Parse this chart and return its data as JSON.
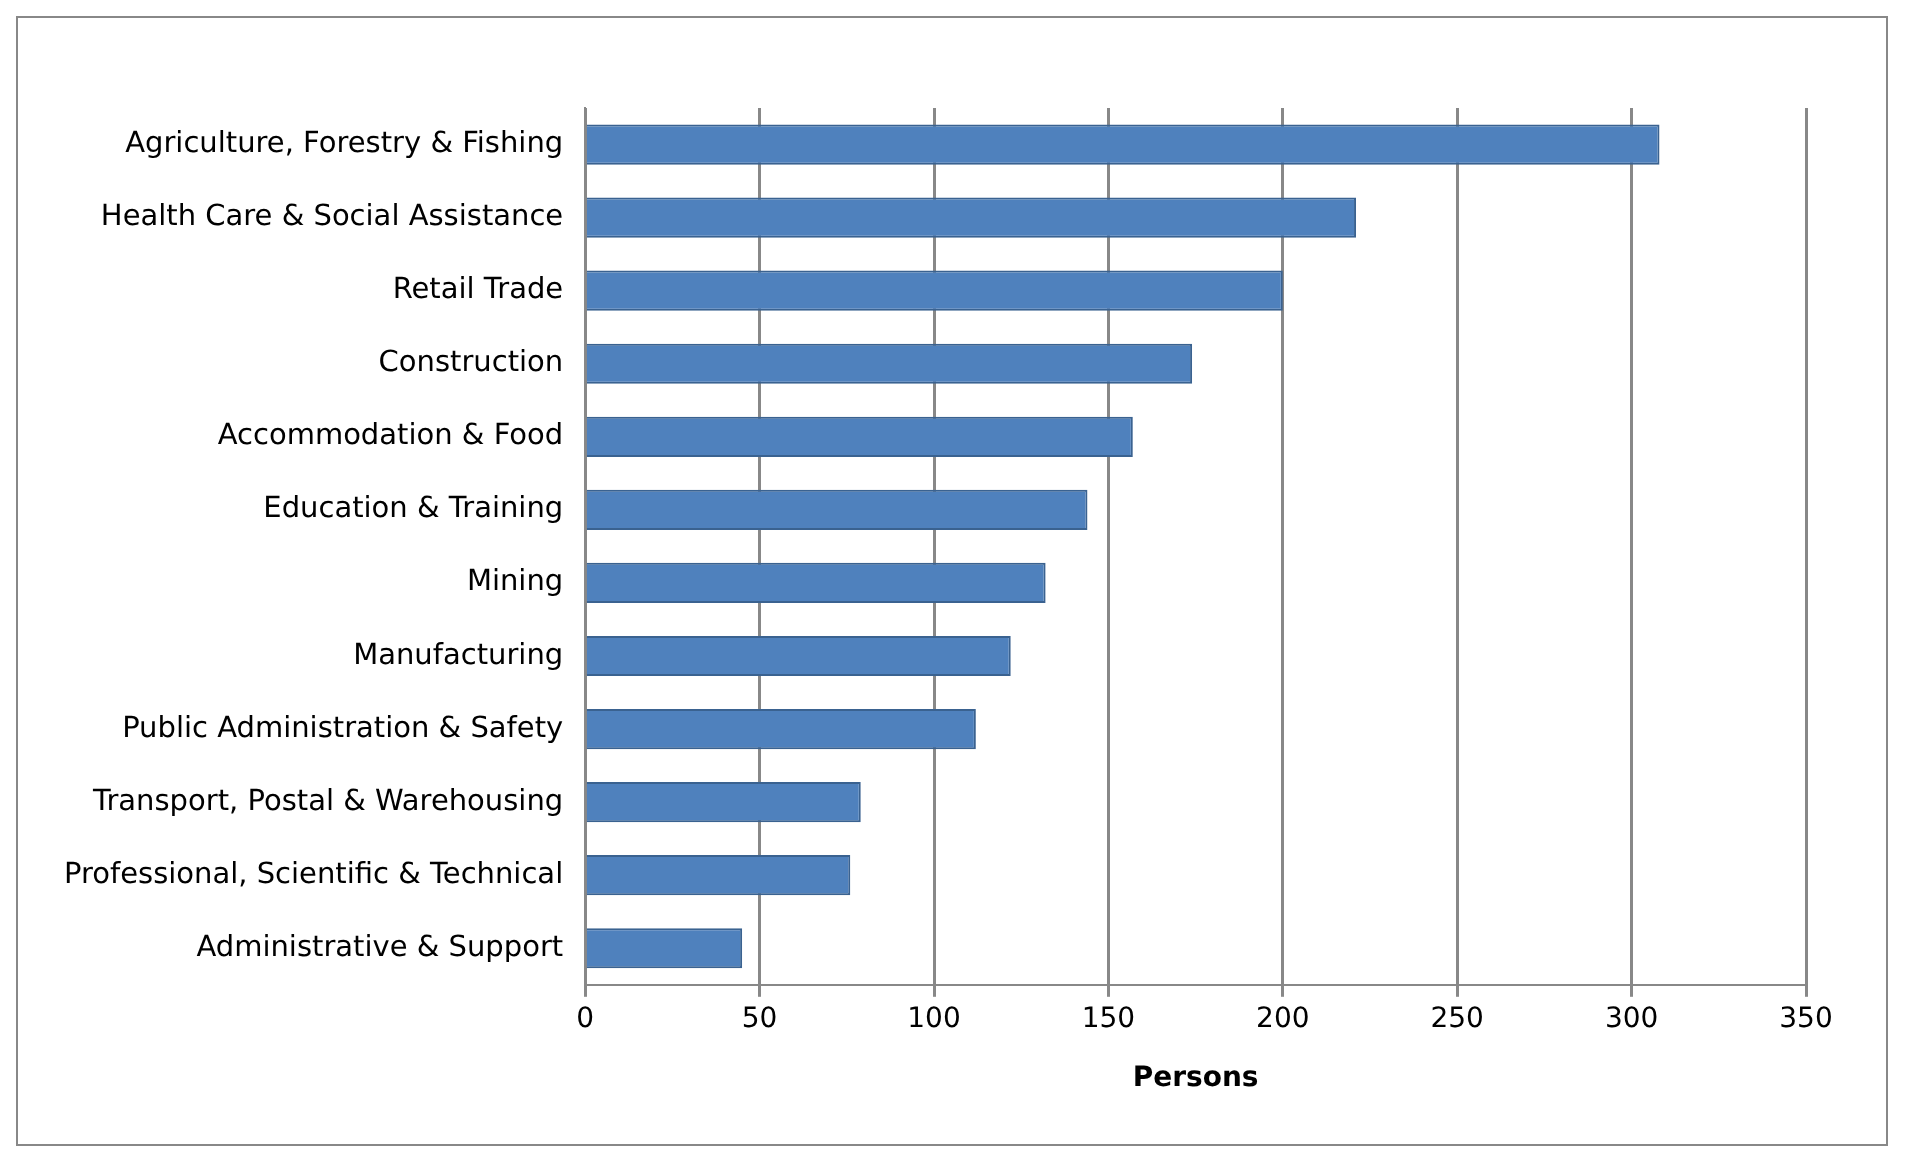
{
  "chart_data": {
    "type": "bar",
    "orientation": "horizontal",
    "xlabel": "Persons",
    "categories": [
      "Agriculture, Forestry & Fishing",
      "Health Care & Social Assistance",
      "Retail Trade",
      "Construction",
      "Accommodation & Food",
      "Education & Training",
      "Mining",
      "Manufacturing",
      "Public Administration & Safety",
      "Transport, Postal & Warehousing",
      "Professional, Scientific & Technical",
      "Administrative & Support"
    ],
    "values": [
      308,
      221,
      200,
      174,
      157,
      144,
      132,
      122,
      112,
      79,
      76,
      45
    ],
    "color": "#4f81bd",
    "xlim": [
      0,
      350
    ],
    "xticks": [
      0,
      50,
      100,
      150,
      200,
      250,
      300,
      350
    ],
    "grid": "x",
    "legend": false
  }
}
